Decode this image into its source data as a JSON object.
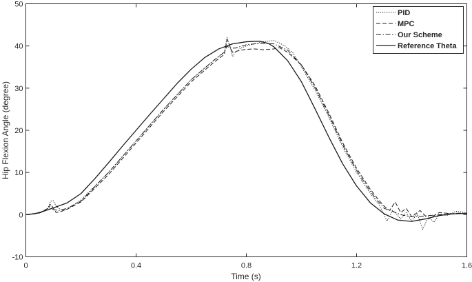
{
  "chart_data": {
    "type": "line",
    "title": "",
    "xlabel": "Time (s)",
    "ylabel": "Hip Flexion Angle (degree)",
    "xlim": [
      0,
      1.6
    ],
    "ylim": [
      -10,
      50
    ],
    "xticks": [
      0,
      0.4,
      0.8,
      1.2,
      1.6
    ],
    "xtick_labels": [
      "0",
      "0.4",
      "0.8",
      "1.2",
      "1.6"
    ],
    "yticks": [
      -10,
      0,
      10,
      20,
      30,
      40,
      50
    ],
    "ytick_labels": [
      "-10",
      "0",
      "10",
      "20",
      "30",
      "40",
      "50"
    ],
    "grid": false,
    "legend": "top-right",
    "series": [
      {
        "name": "PID",
        "style": "dotted",
        "color": "#1a1a1a",
        "x": [
          0,
          0.05,
          0.08,
          0.09,
          0.1,
          0.11,
          0.13,
          0.15,
          0.2,
          0.3,
          0.4,
          0.5,
          0.6,
          0.68,
          0.72,
          0.73,
          0.74,
          0.75,
          0.76,
          0.78,
          0.8,
          0.83,
          0.86,
          0.9,
          0.92,
          0.94,
          0.97,
          1.0,
          1.05,
          1.1,
          1.15,
          1.2,
          1.25,
          1.28,
          1.3,
          1.31,
          1.32,
          1.33,
          1.34,
          1.36,
          1.38,
          1.4,
          1.42,
          1.44,
          1.46,
          1.48,
          1.5,
          1.53,
          1.56,
          1.6
        ],
        "y": [
          0,
          0.5,
          1.5,
          3.2,
          3.3,
          2.0,
          1.0,
          1.3,
          3.5,
          10,
          17.5,
          25,
          32,
          36.5,
          38.5,
          42,
          40,
          37.5,
          38.5,
          39.5,
          40,
          40.5,
          41,
          41.3,
          40.7,
          40,
          38.3,
          35,
          29.5,
          23,
          16,
          10,
          5,
          2.5,
          0,
          -1.5,
          -0.5,
          1.0,
          0.5,
          -1.0,
          0.5,
          -1.5,
          0.2,
          -3.5,
          -0.5,
          -1.8,
          0.0,
          -0.2,
          0.8,
          0.5
        ]
      },
      {
        "name": "MPC",
        "style": "dashed",
        "color": "#1a1a1a",
        "x": [
          0,
          0.05,
          0.08,
          0.09,
          0.1,
          0.11,
          0.13,
          0.15,
          0.2,
          0.3,
          0.4,
          0.5,
          0.6,
          0.68,
          0.72,
          0.73,
          0.74,
          0.75,
          0.78,
          0.8,
          0.83,
          0.86,
          0.9,
          0.92,
          0.95,
          1.0,
          1.05,
          1.1,
          1.15,
          1.2,
          1.25,
          1.28,
          1.3,
          1.32,
          1.34,
          1.36,
          1.38,
          1.4,
          1.43,
          1.46,
          1.5,
          1.55,
          1.6
        ],
        "y": [
          0,
          0.4,
          1.2,
          2.5,
          1.5,
          0.5,
          0.8,
          1.3,
          3.0,
          9.5,
          17,
          24.5,
          31.5,
          36,
          38,
          41.5,
          40,
          38.5,
          39,
          39.2,
          39.3,
          39.1,
          39.3,
          39.6,
          38.5,
          35.5,
          30.5,
          24,
          17,
          11,
          6,
          3.5,
          2.0,
          1.0,
          3.0,
          0.5,
          1.5,
          -0.5,
          1.0,
          -1.0,
          0.5,
          0.2,
          0.3
        ]
      },
      {
        "name": "Our Scheme",
        "style": "dashdot",
        "color": "#1a1a1a",
        "x": [
          0,
          0.05,
          0.08,
          0.1,
          0.12,
          0.15,
          0.2,
          0.3,
          0.4,
          0.5,
          0.6,
          0.68,
          0.72,
          0.73,
          0.74,
          0.76,
          0.8,
          0.83,
          0.86,
          0.9,
          0.95,
          1.0,
          1.05,
          1.1,
          1.15,
          1.2,
          1.25,
          1.28,
          1.3,
          1.33,
          1.36,
          1.4,
          1.45,
          1.5,
          1.55,
          1.6
        ],
        "y": [
          0,
          0.4,
          1.5,
          1.2,
          1.0,
          1.5,
          3.2,
          10,
          17.5,
          25,
          32,
          36.5,
          38.5,
          40,
          39.5,
          39.5,
          40.3,
          40.5,
          40.6,
          40.5,
          39,
          35.5,
          30,
          23.5,
          16.5,
          10.5,
          5.5,
          3.0,
          1.5,
          0.8,
          0.0,
          -0.5,
          -0.3,
          0.0,
          0.3,
          0.4
        ]
      },
      {
        "name": "Reference Theta",
        "style": "solid",
        "color": "#1a1a1a",
        "x": [
          0,
          0.03,
          0.06,
          0.1,
          0.15,
          0.2,
          0.25,
          0.3,
          0.35,
          0.4,
          0.45,
          0.5,
          0.55,
          0.6,
          0.65,
          0.7,
          0.75,
          0.8,
          0.83,
          0.85,
          0.88,
          0.9,
          0.95,
          1.0,
          1.05,
          1.1,
          1.15,
          1.2,
          1.25,
          1.3,
          1.35,
          1.4,
          1.45,
          1.5,
          1.55,
          1.6
        ],
        "y": [
          0,
          0.2,
          0.7,
          1.6,
          2.8,
          5.0,
          8.5,
          12.3,
          16.2,
          20,
          23.8,
          27.5,
          31.2,
          34.5,
          37.3,
          39.3,
          40.5,
          41,
          41.1,
          41.1,
          40.6,
          39.8,
          36.5,
          31.5,
          25,
          18.3,
          12,
          6.8,
          2.8,
          0.2,
          -1.3,
          -1.6,
          -1.0,
          -0.2,
          0.2,
          0.3
        ]
      }
    ]
  }
}
